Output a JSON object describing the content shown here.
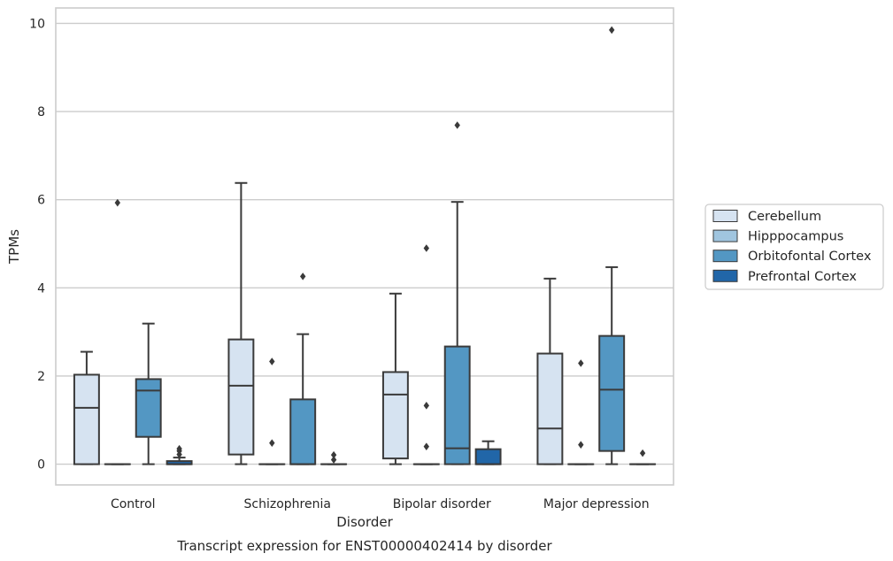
{
  "chart_data": {
    "type": "box",
    "title": "",
    "caption": "Transcript expression for ENST00000402414 by disorder",
    "xlabel": "Disorder",
    "ylabel": "TPMs",
    "ylim": [
      -0.47,
      10.35
    ],
    "yticks": [
      0,
      2,
      4,
      6,
      8,
      10
    ],
    "grid": "horizontal",
    "legend_position": "right",
    "categories": [
      "Control",
      "Schizophrenia",
      "Bipolar disorder",
      "Major depression"
    ],
    "series": [
      {
        "name": "Cerebellum",
        "color": "#d6e3f1",
        "boxes": [
          {
            "whislo": 0,
            "q1": 0,
            "med": 1.28,
            "q3": 2.03,
            "whishi": 2.55,
            "fliers": []
          },
          {
            "whislo": 0,
            "q1": 0.22,
            "med": 1.78,
            "q3": 2.83,
            "whishi": 6.38,
            "fliers": []
          },
          {
            "whislo": 0,
            "q1": 0.13,
            "med": 1.58,
            "q3": 2.09,
            "whishi": 3.87,
            "fliers": []
          },
          {
            "whislo": 0,
            "q1": 0,
            "med": 0.81,
            "q3": 2.51,
            "whishi": 4.21,
            "fliers": []
          }
        ]
      },
      {
        "name": "Hipppocampus",
        "color": "#a0c5df",
        "boxes": [
          {
            "whislo": 0,
            "q1": 0,
            "med": 0,
            "q3": 0,
            "whishi": 0,
            "fliers": [
              5.93
            ]
          },
          {
            "whislo": 0,
            "q1": 0,
            "med": 0,
            "q3": 0,
            "whishi": 0,
            "fliers": [
              2.33,
              0.48
            ]
          },
          {
            "whislo": 0,
            "q1": 0,
            "med": 0,
            "q3": 0,
            "whishi": 0,
            "fliers": [
              4.9,
              1.33,
              0.4
            ]
          },
          {
            "whislo": 0,
            "q1": 0,
            "med": 0,
            "q3": 0,
            "whishi": 0,
            "fliers": [
              2.29,
              0.44
            ]
          }
        ]
      },
      {
        "name": "Orbitofontal Cortex",
        "color": "#5397c3",
        "boxes": [
          {
            "whislo": 0,
            "q1": 0.62,
            "med": 1.67,
            "q3": 1.93,
            "whishi": 3.19,
            "fliers": []
          },
          {
            "whislo": 0,
            "q1": 0,
            "med": 0,
            "q3": 1.47,
            "whishi": 2.95,
            "fliers": [
              4.26
            ]
          },
          {
            "whislo": 0,
            "q1": 0,
            "med": 0.36,
            "q3": 2.67,
            "whishi": 5.95,
            "fliers": [
              7.69
            ]
          },
          {
            "whislo": 0,
            "q1": 0.3,
            "med": 1.69,
            "q3": 2.91,
            "whishi": 4.47,
            "fliers": [
              9.85
            ]
          }
        ]
      },
      {
        "name": "Prefrontal Cortex",
        "color": "#2166a8",
        "boxes": [
          {
            "whislo": 0,
            "q1": 0,
            "med": 0,
            "q3": 0.07,
            "whishi": 0.15,
            "fliers": [
              0.35,
              0.3,
              0.22
            ]
          },
          {
            "whislo": 0,
            "q1": 0,
            "med": 0,
            "q3": 0,
            "whishi": 0,
            "fliers": [
              0.21,
              0.1
            ]
          },
          {
            "whislo": 0,
            "q1": 0,
            "med": 0,
            "q3": 0.34,
            "whishi": 0.52,
            "fliers": []
          },
          {
            "whislo": 0,
            "q1": 0,
            "med": 0,
            "q3": 0,
            "whishi": 0,
            "fliers": [
              0.25
            ]
          }
        ]
      }
    ]
  }
}
